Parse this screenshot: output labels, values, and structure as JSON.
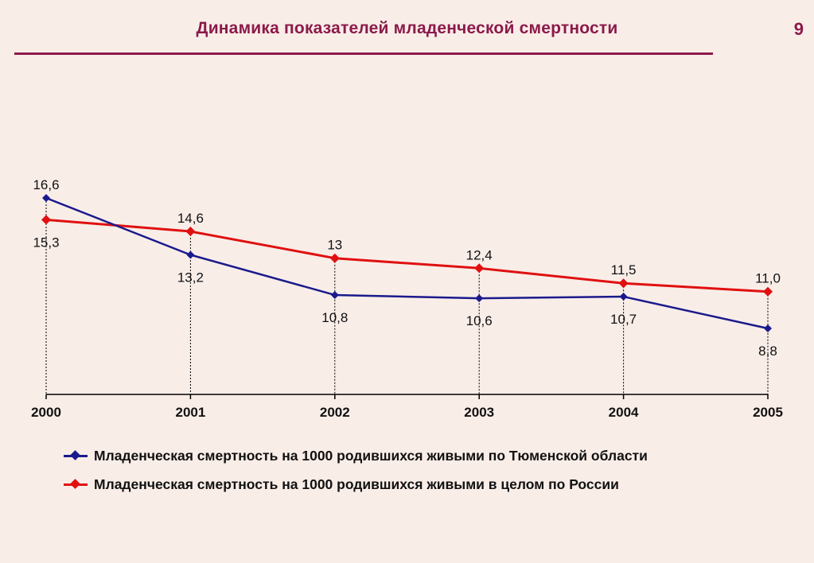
{
  "slide": {
    "title": "Динамика показателей младенческой  смертности",
    "page_number": "9"
  },
  "chart_data": {
    "type": "line",
    "title": "Динамика показателей младенческой  смертности",
    "x": [
      "2000",
      "2001",
      "2002",
      "2003",
      "2004",
      "2005"
    ],
    "series": [
      {
        "name": "Младенческая смертность на 1000 родившихся живыми по Тюменской области",
        "values": [
          16.6,
          13.2,
          10.8,
          10.6,
          10.7,
          8.8
        ],
        "labels": [
          "16,6",
          "13,2",
          "10,8",
          "10,6",
          "10,7",
          "8,8"
        ],
        "color": "#1a1a8c"
      },
      {
        "name": "Младенческая смертность на 1000 родившихся живыми в целом по России",
        "values": [
          15.3,
          14.6,
          13.0,
          12.4,
          11.5,
          11.0
        ],
        "labels": [
          "15,3",
          "14,6",
          "13",
          "12,4",
          "11,5",
          "11,0"
        ],
        "color": "#e01010"
      }
    ],
    "grid": false,
    "drop_lines": true,
    "legend_position": "bottom"
  }
}
